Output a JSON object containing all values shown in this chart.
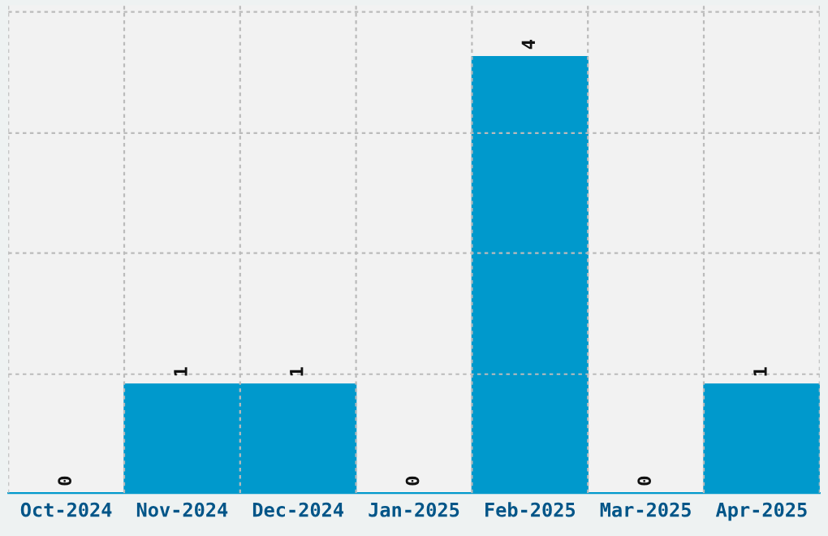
{
  "chart_data": {
    "type": "bar",
    "categories": [
      "Oct-2024",
      "Nov-2024",
      "Dec-2024",
      "Jan-2025",
      "Feb-2025",
      "Mar-2025",
      "Apr-2025"
    ],
    "values": [
      0,
      1,
      1,
      0,
      4,
      0,
      1
    ],
    "color": "#0099cc",
    "ylim": [
      0,
      4.47
    ],
    "yticks": [
      {
        "value": 1.09,
        "label": null
      },
      {
        "value": 2.2,
        "label": null
      },
      {
        "value": 3.3,
        "label": null
      },
      {
        "value": 4.41,
        "label": null
      }
    ],
    "grid": true,
    "data_labels": true,
    "tick_labels": "x"
  }
}
